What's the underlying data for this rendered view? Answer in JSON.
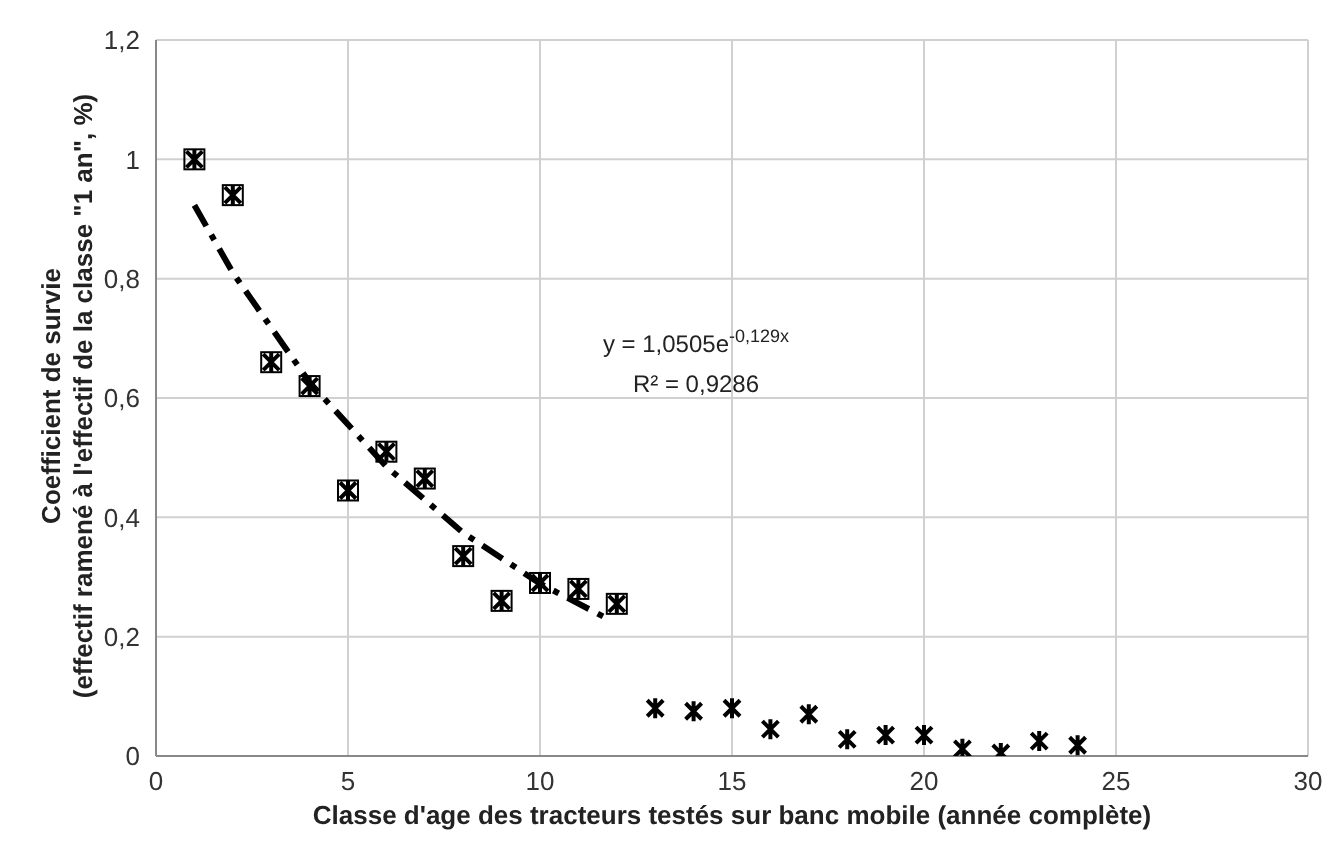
{
  "chart_data": {
    "type": "scatter",
    "xlabel": "Classe d'age des tracteurs testés sur banc mobile (année complète)",
    "ylabel": "Coefficient de survie\n(effectif ramené à l'effectif de la classe \"1 an\", %)",
    "xlim": [
      0,
      30
    ],
    "xticks": [
      0,
      5,
      10,
      15,
      20,
      25,
      30
    ],
    "ylim": [
      0,
      1.2
    ],
    "yticks": [
      {
        "value": 0,
        "label": "0"
      },
      {
        "value": 0.2,
        "label": "0,2"
      },
      {
        "value": 0.4,
        "label": "0,4"
      },
      {
        "value": 0.6,
        "label": "0,6"
      },
      {
        "value": 0.8,
        "label": "0,8"
      },
      {
        "value": 1,
        "label": "1"
      },
      {
        "value": 1.2,
        "label": "1,2"
      }
    ],
    "grid": true,
    "legend": false,
    "series": [
      {
        "marker": "square",
        "color": "#000000",
        "x": [
          1,
          2,
          3,
          4,
          5,
          6,
          7,
          8,
          9,
          10,
          11,
          12
        ],
        "values": [
          1.0,
          0.94,
          0.66,
          0.62,
          0.445,
          0.51,
          0.465,
          0.335,
          0.26,
          0.29,
          0.28,
          0.255
        ]
      },
      {
        "marker": "cross",
        "color": "#000000",
        "x": [
          13,
          14,
          15,
          16,
          17,
          18,
          19,
          20,
          21,
          22,
          23,
          24
        ],
        "values": [
          0.08,
          0.075,
          0.08,
          0.045,
          0.07,
          0.028,
          0.035,
          0.035,
          0.012,
          0.005,
          0.025,
          0.018
        ]
      },
      {
        "type": "line",
        "marker": "none",
        "color": "#000000",
        "line_style": "dashed",
        "x": [
          1,
          2,
          4,
          6,
          8,
          10,
          11.7
        ],
        "values": [
          0.923,
          0.81,
          0.626,
          0.485,
          0.374,
          0.289,
          0.232
        ]
      }
    ],
    "annotations": [
      "y = 1,0505e$^{-0,129x}$",
      "R² = 0,9286"
    ]
  }
}
